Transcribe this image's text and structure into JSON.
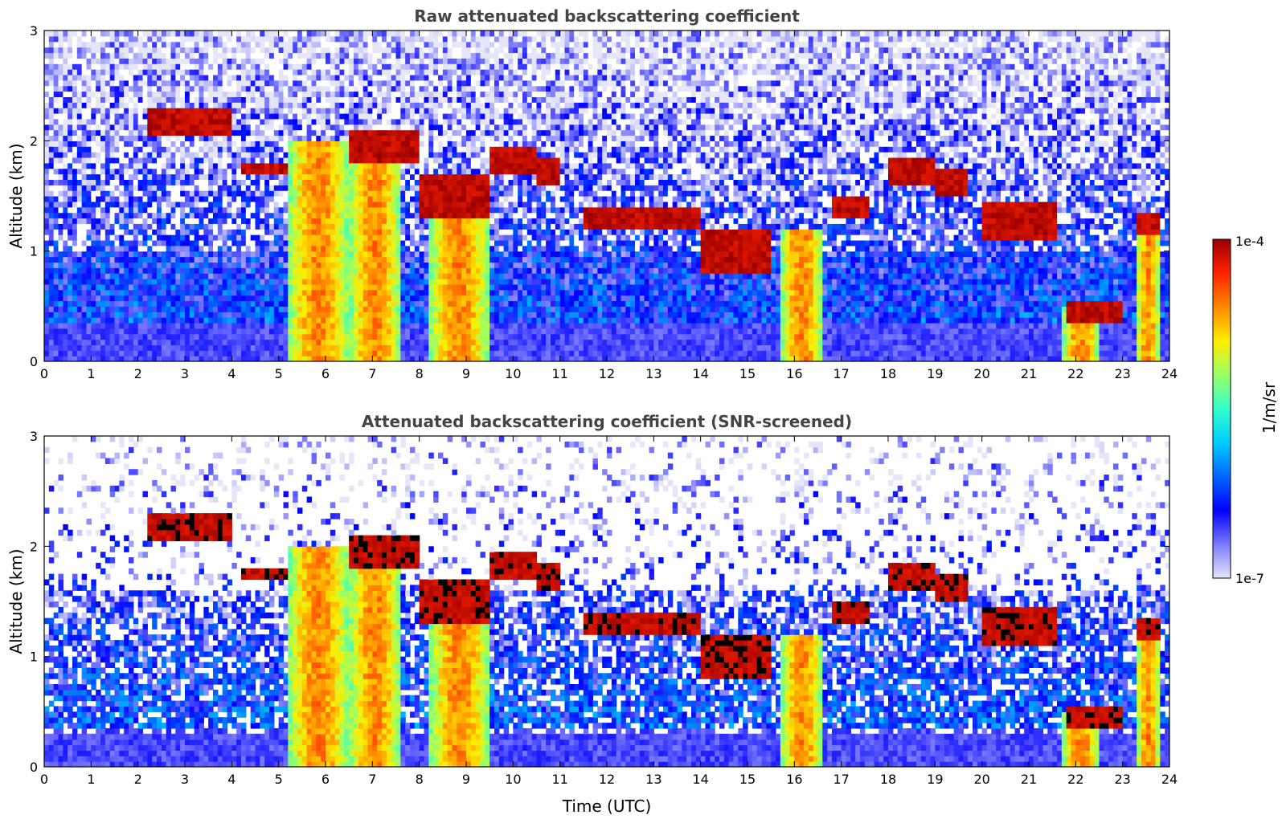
{
  "chart_data": [
    {
      "type": "heatmap",
      "title": "Raw attenuated backscattering coefficient",
      "xlabel": "",
      "ylabel": "Altitude (km)",
      "xlim": [
        0,
        24
      ],
      "ylim": [
        0,
        3
      ],
      "x_ticks": [
        0,
        1,
        2,
        3,
        4,
        5,
        6,
        7,
        8,
        9,
        10,
        11,
        12,
        13,
        14,
        15,
        16,
        17,
        18,
        19,
        20,
        21,
        22,
        23,
        24
      ],
      "y_ticks": [
        0,
        1,
        2,
        3
      ],
      "x_tick_labels": [
        "0",
        "1",
        "2",
        "3",
        "4",
        "5",
        "6",
        "7",
        "8",
        "9",
        "10",
        "11",
        "12",
        "13",
        "14",
        "15",
        "16",
        "17",
        "18",
        "19",
        "20",
        "21",
        "22",
        "23",
        "24"
      ],
      "y_tick_labels": [
        "0",
        "1",
        "2",
        "3"
      ],
      "screened": false,
      "cloud_layers": [
        {
          "t": [
            2.2,
            4.0
          ],
          "h": [
            2.05,
            2.3
          ]
        },
        {
          "t": [
            4.2,
            5.2
          ],
          "h": [
            1.7,
            1.8
          ]
        },
        {
          "t": [
            6.5,
            8.0
          ],
          "h": [
            1.8,
            2.1
          ]
        },
        {
          "t": [
            8.0,
            9.5
          ],
          "h": [
            1.3,
            1.7
          ]
        },
        {
          "t": [
            9.5,
            10.5
          ],
          "h": [
            1.7,
            1.95
          ]
        },
        {
          "t": [
            10.5,
            11.0
          ],
          "h": [
            1.6,
            1.85
          ]
        },
        {
          "t": [
            11.5,
            14.0
          ],
          "h": [
            1.2,
            1.4
          ]
        },
        {
          "t": [
            14.0,
            15.5
          ],
          "h": [
            0.8,
            1.2
          ]
        },
        {
          "t": [
            16.8,
            17.6
          ],
          "h": [
            1.3,
            1.5
          ]
        },
        {
          "t": [
            18.0,
            19.0
          ],
          "h": [
            1.6,
            1.85
          ]
        },
        {
          "t": [
            19.0,
            19.7
          ],
          "h": [
            1.5,
            1.75
          ]
        },
        {
          "t": [
            20.0,
            21.6
          ],
          "h": [
            1.1,
            1.45
          ]
        },
        {
          "t": [
            21.8,
            23.0
          ],
          "h": [
            0.35,
            0.55
          ]
        },
        {
          "t": [
            23.3,
            23.8
          ],
          "h": [
            1.15,
            1.35
          ]
        }
      ],
      "precip_columns": [
        {
          "t": [
            5.2,
            6.5
          ],
          "top": 2.0
        },
        {
          "t": [
            6.5,
            7.6
          ],
          "top": 1.8
        },
        {
          "t": [
            8.2,
            9.5
          ],
          "top": 1.3
        },
        {
          "t": [
            15.7,
            16.6
          ],
          "top": 1.2
        },
        {
          "t": [
            21.7,
            22.5
          ],
          "top": 0.5
        },
        {
          "t": [
            23.3,
            23.8
          ],
          "top": 1.2
        }
      ]
    },
    {
      "type": "heatmap",
      "title": "Attenuated backscattering coefficient (SNR-screened)",
      "xlabel": "Time (UTC)",
      "ylabel": "Altitude (km)",
      "xlim": [
        0,
        24
      ],
      "ylim": [
        0,
        3
      ],
      "x_ticks": [
        0,
        1,
        2,
        3,
        4,
        5,
        6,
        7,
        8,
        9,
        10,
        11,
        12,
        13,
        14,
        15,
        16,
        17,
        18,
        19,
        20,
        21,
        22,
        23,
        24
      ],
      "y_ticks": [
        0,
        1,
        2,
        3
      ],
      "x_tick_labels": [
        "0",
        "1",
        "2",
        "3",
        "4",
        "5",
        "6",
        "7",
        "8",
        "9",
        "10",
        "11",
        "12",
        "13",
        "14",
        "15",
        "16",
        "17",
        "18",
        "19",
        "20",
        "21",
        "22",
        "23",
        "24"
      ],
      "y_tick_labels": [
        "0",
        "1",
        "2",
        "3"
      ],
      "screened": true
    }
  ],
  "colorbar": {
    "label": "1/m/sr",
    "max_label": "1e-4",
    "min_label": "1e-7",
    "scale": "log",
    "range": [
      1e-07,
      0.0001
    ],
    "colors": [
      "#e6e6f8",
      "#7a7aff",
      "#0000ff",
      "#0066ff",
      "#00ccff",
      "#33ffcc",
      "#99ff66",
      "#ffee00",
      "#ff8800",
      "#ff2200",
      "#990000"
    ]
  }
}
